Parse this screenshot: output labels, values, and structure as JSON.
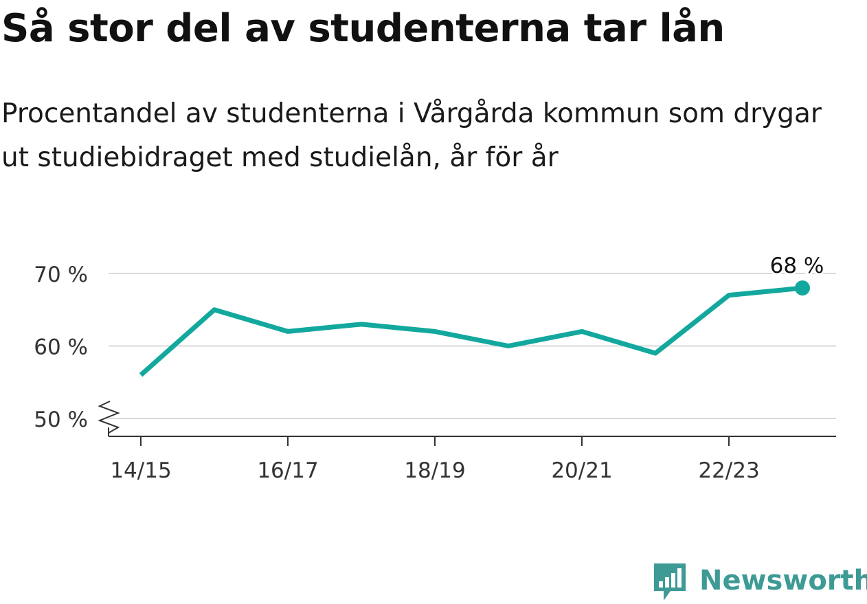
{
  "title": "Så stor del av studenterna tar lån",
  "subtitle": "Procentandel av studenterna i Vårgårda kommun som drygar ut studiebidraget med studielån, år för år",
  "brand": {
    "name": "Newsworthy",
    "color": "#3d9a95",
    "icon": "bar-chart-icon"
  },
  "chart_data": {
    "type": "line",
    "x": [
      "14/15",
      "15/16",
      "16/17",
      "17/18",
      "18/19",
      "19/20",
      "20/21",
      "21/22",
      "22/23",
      "23/24"
    ],
    "x_tick_labels": [
      "14/15",
      "16/17",
      "18/19",
      "20/21",
      "22/23"
    ],
    "series": [
      {
        "values": [
          56,
          65,
          62,
          63,
          62,
          60,
          62,
          59,
          67,
          68
        ],
        "color": "#13a89e"
      }
    ],
    "y_ticks": [
      50,
      60,
      70
    ],
    "y_tick_labels": [
      "50 %",
      "60 %",
      "70 %"
    ],
    "ylim": [
      50,
      70
    ],
    "y_axis_break": true,
    "grid": true,
    "last_point_label": "68 %"
  }
}
